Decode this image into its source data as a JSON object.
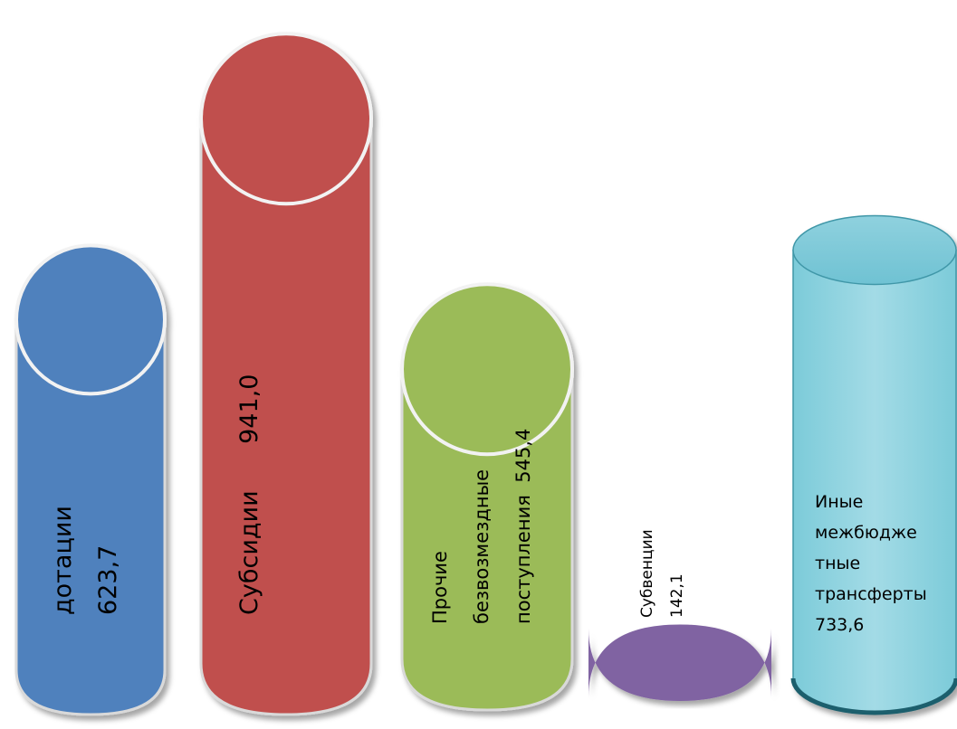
{
  "chart_data": {
    "type": "bar",
    "title": "",
    "xlabel": "",
    "ylabel": "",
    "categories": [
      "дотации",
      "Субсидии",
      "Прочие безвозмездные поступления",
      "Субвенции",
      "Иные межбюджетные трансферты"
    ],
    "values": [
      623.7,
      941.0,
      545.4,
      142.1,
      733.6
    ],
    "grid": false,
    "legend": "none",
    "series": [
      {
        "values": [
          623.7,
          941.0,
          545.4,
          142.1,
          733.6
        ]
      }
    ],
    "labels": [
      {
        "lines": [
          "дотации",
          "623,7"
        ],
        "orientation": "vertical"
      },
      {
        "lines": [
          "Субсидии      941,0"
        ],
        "orientation": "vertical"
      },
      {
        "lines": [
          "Прочие",
          "безвозмездные",
          "поступления  545,4"
        ],
        "orientation": "vertical"
      },
      {
        "lines": [
          "Субвенции",
          "142,1"
        ],
        "orientation": "vertical"
      },
      {
        "lines": [
          "Иные",
          "межбюдже",
          "тные",
          "трансферты",
          "733,6"
        ],
        "orientation": "horizontal"
      }
    ],
    "colors": [
      "#4f81bd",
      "#c0504d",
      "#9bbb59",
      "#8064a2",
      "#4bacc6"
    ],
    "styles": [
      "cylinder",
      "cylinder",
      "cylinder",
      "capsule",
      "cylinder-glossy"
    ]
  }
}
